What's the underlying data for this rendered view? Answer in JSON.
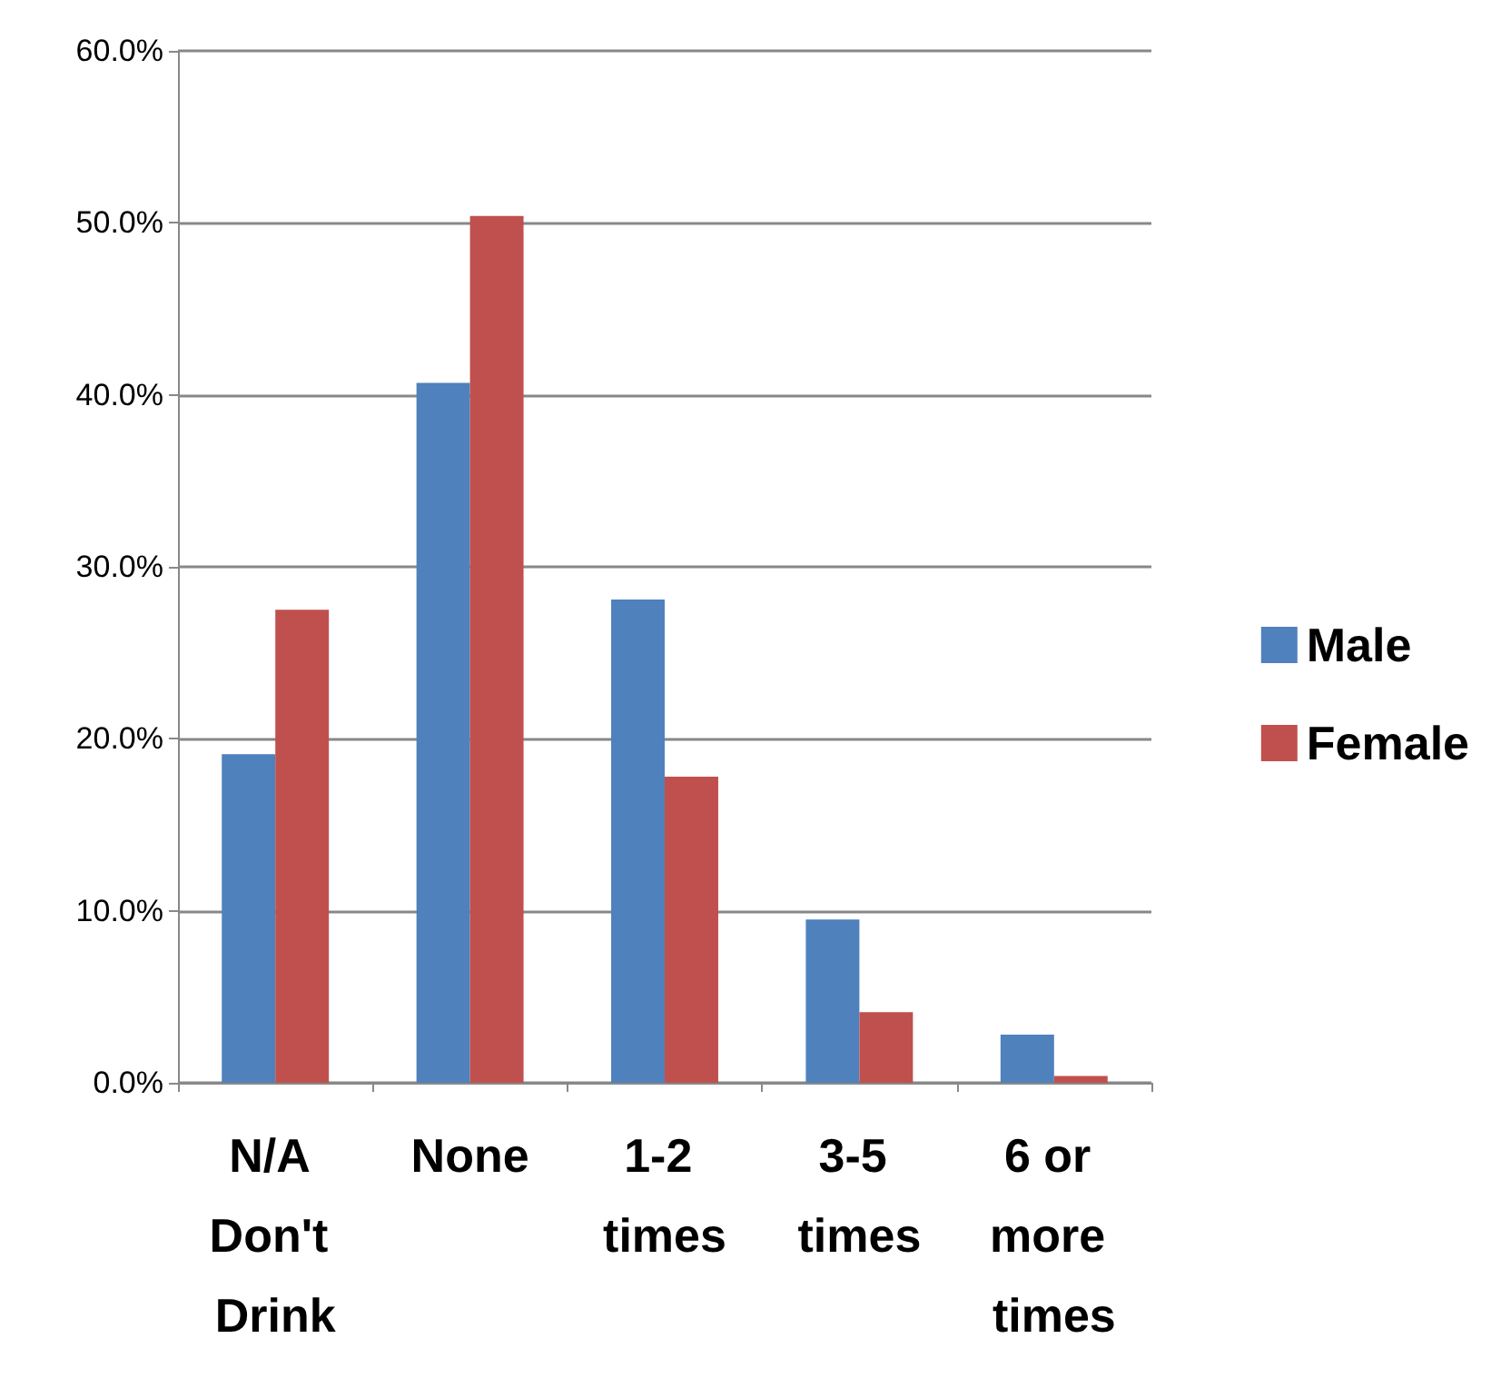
{
  "chart_data": {
    "type": "bar",
    "categories": [
      "N/A Don't Drink",
      "None",
      "1-2 times",
      "3-5 times",
      "6 or more times"
    ],
    "series": [
      {
        "name": "Male",
        "color": "#4f81bd",
        "values": [
          19.1,
          40.7,
          28.1,
          9.5,
          2.8
        ]
      },
      {
        "name": "Female",
        "color": "#c0504d",
        "values": [
          27.5,
          50.4,
          17.8,
          4.1,
          0.4
        ]
      }
    ],
    "ylim": [
      0,
      60
    ],
    "yticks": [
      {
        "value": 0,
        "label": "0.0%"
      },
      {
        "value": 10,
        "label": "10.0%"
      },
      {
        "value": 20,
        "label": "20.0%"
      },
      {
        "value": 30,
        "label": "30.0%"
      },
      {
        "value": 40,
        "label": "40.0%"
      },
      {
        "value": 50,
        "label": "50.0%"
      },
      {
        "value": 60,
        "label": "60.0%"
      }
    ],
    "grid": "y",
    "legend": "right"
  }
}
